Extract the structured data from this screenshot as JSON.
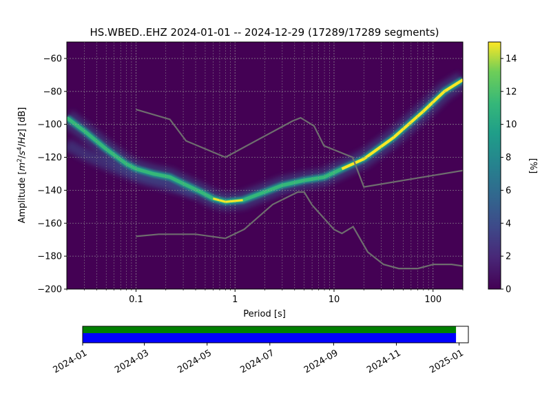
{
  "title": "HS.WBED..EHZ   2024-01-01 -- 2024-12-29  (17289/17289 segments)",
  "chart_data": [
    {
      "type": "heatmap",
      "title": "HS.WBED..EHZ   2024-01-01 -- 2024-12-29  (17289/17289 segments)",
      "xlabel": "Period [s]",
      "ylabel": "Amplitude [m²/s⁴/Hz] [dB]",
      "x_scale": "log",
      "xlim": [
        0.02,
        200
      ],
      "ylim": [
        -200,
        -50
      ],
      "x_ticks": [
        0.1,
        1,
        10,
        100
      ],
      "x_tick_labels": [
        "0.1",
        "1",
        "10",
        "100"
      ],
      "y_ticks": [
        -60,
        -80,
        -100,
        -120,
        -140,
        -160,
        -180,
        -200
      ],
      "grid": true,
      "colorbar": {
        "label": "[%]",
        "range": [
          0,
          15
        ],
        "ticks": [
          0,
          2,
          4,
          6,
          8,
          10,
          12,
          14
        ],
        "colormap": "viridis"
      },
      "mode_curve": [
        {
          "period": 0.02,
          "db": -96
        },
        {
          "period": 0.03,
          "db": -104
        },
        {
          "period": 0.05,
          "db": -115
        },
        {
          "period": 0.08,
          "db": -124
        },
        {
          "period": 0.1,
          "db": -127
        },
        {
          "period": 0.15,
          "db": -130
        },
        {
          "period": 0.22,
          "db": -132
        },
        {
          "period": 0.3,
          "db": -136
        },
        {
          "period": 0.45,
          "db": -141
        },
        {
          "period": 0.6,
          "db": -145
        },
        {
          "period": 0.8,
          "db": -147
        },
        {
          "period": 1.2,
          "db": -146
        },
        {
          "period": 2,
          "db": -141
        },
        {
          "period": 3,
          "db": -137
        },
        {
          "period": 5,
          "db": -134
        },
        {
          "period": 8,
          "db": -132
        },
        {
          "period": 12,
          "db": -127
        },
        {
          "period": 20,
          "db": -121
        },
        {
          "period": 40,
          "db": -108
        },
        {
          "period": 80,
          "db": -92
        },
        {
          "period": 130,
          "db": -80
        },
        {
          "period": 200,
          "db": -73
        }
      ],
      "secondary_band": [
        {
          "period": 0.02,
          "db": -112
        },
        {
          "period": 0.03,
          "db": -118
        },
        {
          "period": 0.06,
          "db": -126
        },
        {
          "period": 0.12,
          "db": -133
        },
        {
          "period": 0.25,
          "db": -138
        },
        {
          "period": 0.4,
          "db": -141
        }
      ],
      "noise_model_upper": [
        {
          "period": 0.1,
          "db": -91
        },
        {
          "period": 0.22,
          "db": -97
        },
        {
          "period": 0.32,
          "db": -110
        },
        {
          "period": 0.8,
          "db": -120
        },
        {
          "period": 3.8,
          "db": -98
        },
        {
          "period": 4.6,
          "db": -96
        },
        {
          "period": 6.3,
          "db": -101
        },
        {
          "period": 7.9,
          "db": -113
        },
        {
          "period": 15.4,
          "db": -120
        },
        {
          "period": 20,
          "db": -138
        },
        {
          "period": 200,
          "db": -128
        }
      ],
      "noise_model_lower": [
        {
          "period": 0.1,
          "db": -168
        },
        {
          "period": 0.17,
          "db": -166.7
        },
        {
          "period": 0.4,
          "db": -166.7
        },
        {
          "period": 0.8,
          "db": -169.2
        },
        {
          "period": 1.24,
          "db": -163.7
        },
        {
          "period": 2.4,
          "db": -148.6
        },
        {
          "period": 4.3,
          "db": -141.1
        },
        {
          "period": 5,
          "db": -141.1
        },
        {
          "period": 6,
          "db": -149
        },
        {
          "period": 10,
          "db": -163.8
        },
        {
          "period": 12,
          "db": -166.2
        },
        {
          "period": 15.6,
          "db": -162.1
        },
        {
          "period": 21.9,
          "db": -177.5
        },
        {
          "period": 31.6,
          "db": -185
        },
        {
          "period": 45,
          "db": -187.5
        },
        {
          "period": 70,
          "db": -187.5
        },
        {
          "period": 101,
          "db": -185
        },
        {
          "period": 154,
          "db": -185
        },
        {
          "period": 200,
          "db": -186
        }
      ]
    },
    {
      "type": "timeline",
      "xlim": [
        "2024-01-01",
        "2025-01-10"
      ],
      "coverage_start": "2024-01-01",
      "coverage_end": "2024-12-29",
      "tick_labels": [
        "2024-01",
        "2024-03",
        "2024-05",
        "2024-07",
        "2024-09",
        "2024-11",
        "2025-01"
      ],
      "tick_dates": [
        "2024-01-01",
        "2024-03-01",
        "2024-05-01",
        "2024-07-01",
        "2024-09-01",
        "2024-11-01",
        "2025-01-01"
      ],
      "bars": [
        {
          "color": "#008000"
        },
        {
          "color": "#0000ff"
        }
      ]
    }
  ],
  "colors": {
    "noise_model": "#6e6e6e",
    "background_field": "#440154",
    "grid": "#999999"
  }
}
